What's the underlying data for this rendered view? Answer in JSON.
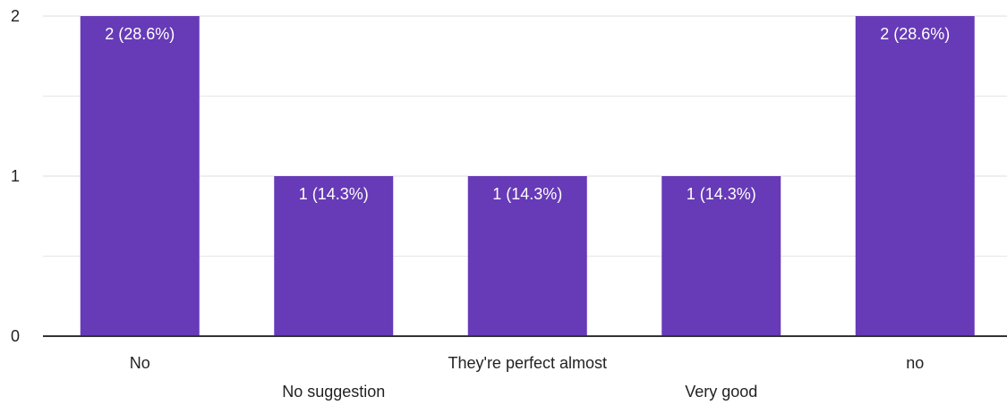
{
  "chart_data": {
    "type": "bar",
    "categories": [
      "No",
      "No suggestion",
      "They're perfect almost",
      "Very good",
      "no"
    ],
    "values": [
      2,
      1,
      1,
      1,
      2
    ],
    "data_labels": [
      "2 (28.6%)",
      "1 (14.3%)",
      "1 (14.3%)",
      "1 (14.3%)",
      "2 (28.6%)"
    ],
    "title": "",
    "xlabel": "",
    "ylabel": "",
    "ylim": [
      0,
      2
    ],
    "yticks": [
      "0",
      "1",
      "2"
    ],
    "grid": true,
    "legend": "none"
  },
  "colors": {
    "bar": "#673ab7",
    "axis": "#333333",
    "grid": "#e6e6e6",
    "major_grid": "#dddddd"
  }
}
